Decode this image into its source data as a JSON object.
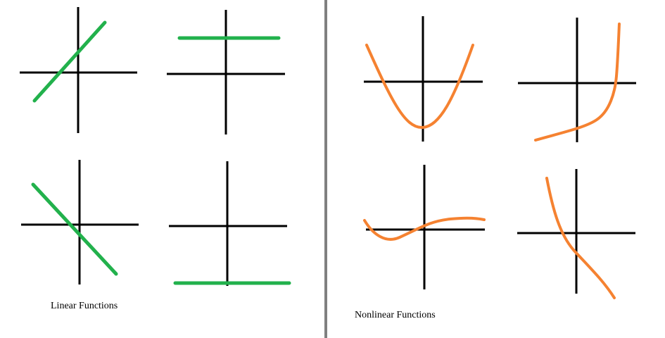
{
  "captions": {
    "linear": "Linear Functions",
    "nonlinear": "Nonlinear Functions"
  },
  "colors": {
    "background": "#ffffff",
    "axes": "#000000",
    "divider": "#808080",
    "linear_curve": "#22b14c",
    "nonlinear_curve": "#f58231"
  },
  "graphs": {
    "linear": [
      {
        "id": "increasing-line",
        "kind": "linear",
        "slope": "positive"
      },
      {
        "id": "horizontal-line-above-axis",
        "kind": "linear",
        "slope": "zero"
      },
      {
        "id": "decreasing-line",
        "kind": "linear",
        "slope": "negative"
      },
      {
        "id": "horizontal-line-below-axis",
        "kind": "linear",
        "slope": "zero"
      }
    ],
    "nonlinear": [
      {
        "id": "parabola",
        "kind": "nonlinear",
        "shape": "parabola"
      },
      {
        "id": "exponential-curve",
        "kind": "nonlinear",
        "shape": "exponential"
      },
      {
        "id": "wave-curve",
        "kind": "nonlinear",
        "shape": "wave"
      },
      {
        "id": "decreasing-curve",
        "kind": "nonlinear",
        "shape": "decreasing"
      }
    ]
  }
}
